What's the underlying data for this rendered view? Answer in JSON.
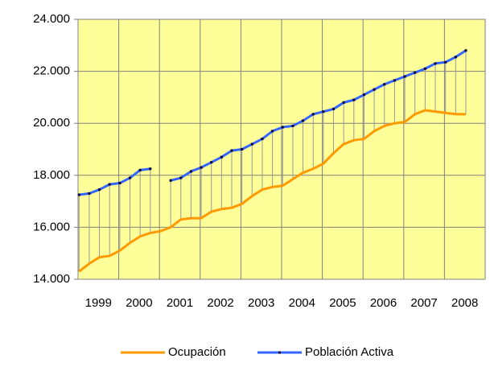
{
  "chart_data": {
    "type": "line",
    "categories": [
      "1999",
      null,
      null,
      null,
      "2000",
      null,
      null,
      null,
      "2001",
      null,
      null,
      null,
      "2002",
      null,
      null,
      null,
      "2003",
      null,
      null,
      null,
      "2004",
      null,
      null,
      null,
      "2005",
      null,
      null,
      null,
      "2006",
      null,
      null,
      null,
      "2007",
      null,
      null,
      null,
      "2008",
      null,
      null
    ],
    "series": [
      {
        "name": "Ocupación",
        "color": "#ff9900",
        "values": [
          14300,
          14600,
          14850,
          14900,
          15100,
          15400,
          15650,
          15780,
          15850,
          16000,
          16300,
          16350,
          16350,
          16600,
          16700,
          16750,
          16900,
          17200,
          17450,
          17550,
          17600,
          17850,
          18100,
          18250,
          18450,
          18850,
          19200,
          19350,
          19400,
          19700,
          19900,
          20000,
          20050,
          20350,
          20500,
          20450,
          20400,
          20350,
          20350
        ]
      },
      {
        "name": "Población Activa",
        "color": "#3366ff",
        "marker_color": "#000033",
        "values": [
          17250,
          17300,
          17450,
          17650,
          17700,
          17900,
          18200,
          18250,
          null,
          17800,
          17900,
          18150,
          18300,
          18500,
          18700,
          18950,
          19000,
          19200,
          19400,
          19700,
          19850,
          19900,
          20100,
          20350,
          20450,
          20550,
          20800,
          20900,
          21100,
          21300,
          21500,
          21650,
          21800,
          21950,
          22100,
          22300,
          22350,
          22550,
          22800
        ]
      }
    ],
    "ylim": [
      14000,
      24000
    ],
    "yticks": [
      {
        "value": 14000,
        "label": "14.000"
      },
      {
        "value": 16000,
        "label": "16.000"
      },
      {
        "value": 18000,
        "label": "18.000"
      },
      {
        "value": 20000,
        "label": "20.000"
      },
      {
        "value": 22000,
        "label": "22.000"
      },
      {
        "value": 24000,
        "label": "24.000"
      }
    ],
    "grid": true,
    "background": "#ffff99",
    "high_low_lines": true,
    "legend": "bottom"
  }
}
